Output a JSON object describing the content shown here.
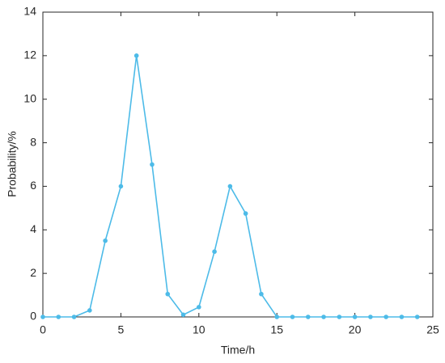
{
  "chart_data": {
    "type": "line",
    "x_label": "Time/h",
    "y_label": "Probability/%",
    "x": [
      0,
      1,
      2,
      3,
      4,
      5,
      6,
      7,
      8,
      9,
      10,
      11,
      12,
      13,
      14,
      15,
      16,
      17,
      18,
      19,
      20,
      21,
      22,
      23,
      24
    ],
    "series": [
      {
        "color": "#4dbbe8",
        "values": [
          0,
          0,
          0,
          0.3,
          3.5,
          6.0,
          12.0,
          7.0,
          1.05,
          0.1,
          0.45,
          3.0,
          6.0,
          4.75,
          1.05,
          0,
          0,
          0,
          0,
          0,
          0,
          0,
          0,
          0,
          0
        ]
      }
    ],
    "xlim": [
      0,
      25
    ],
    "xticks": [
      0,
      5,
      10,
      15,
      20,
      25
    ],
    "ylim": [
      0,
      14
    ],
    "yticks": [
      0,
      2,
      4,
      6,
      8,
      10,
      12,
      14
    ],
    "grid": false
  }
}
